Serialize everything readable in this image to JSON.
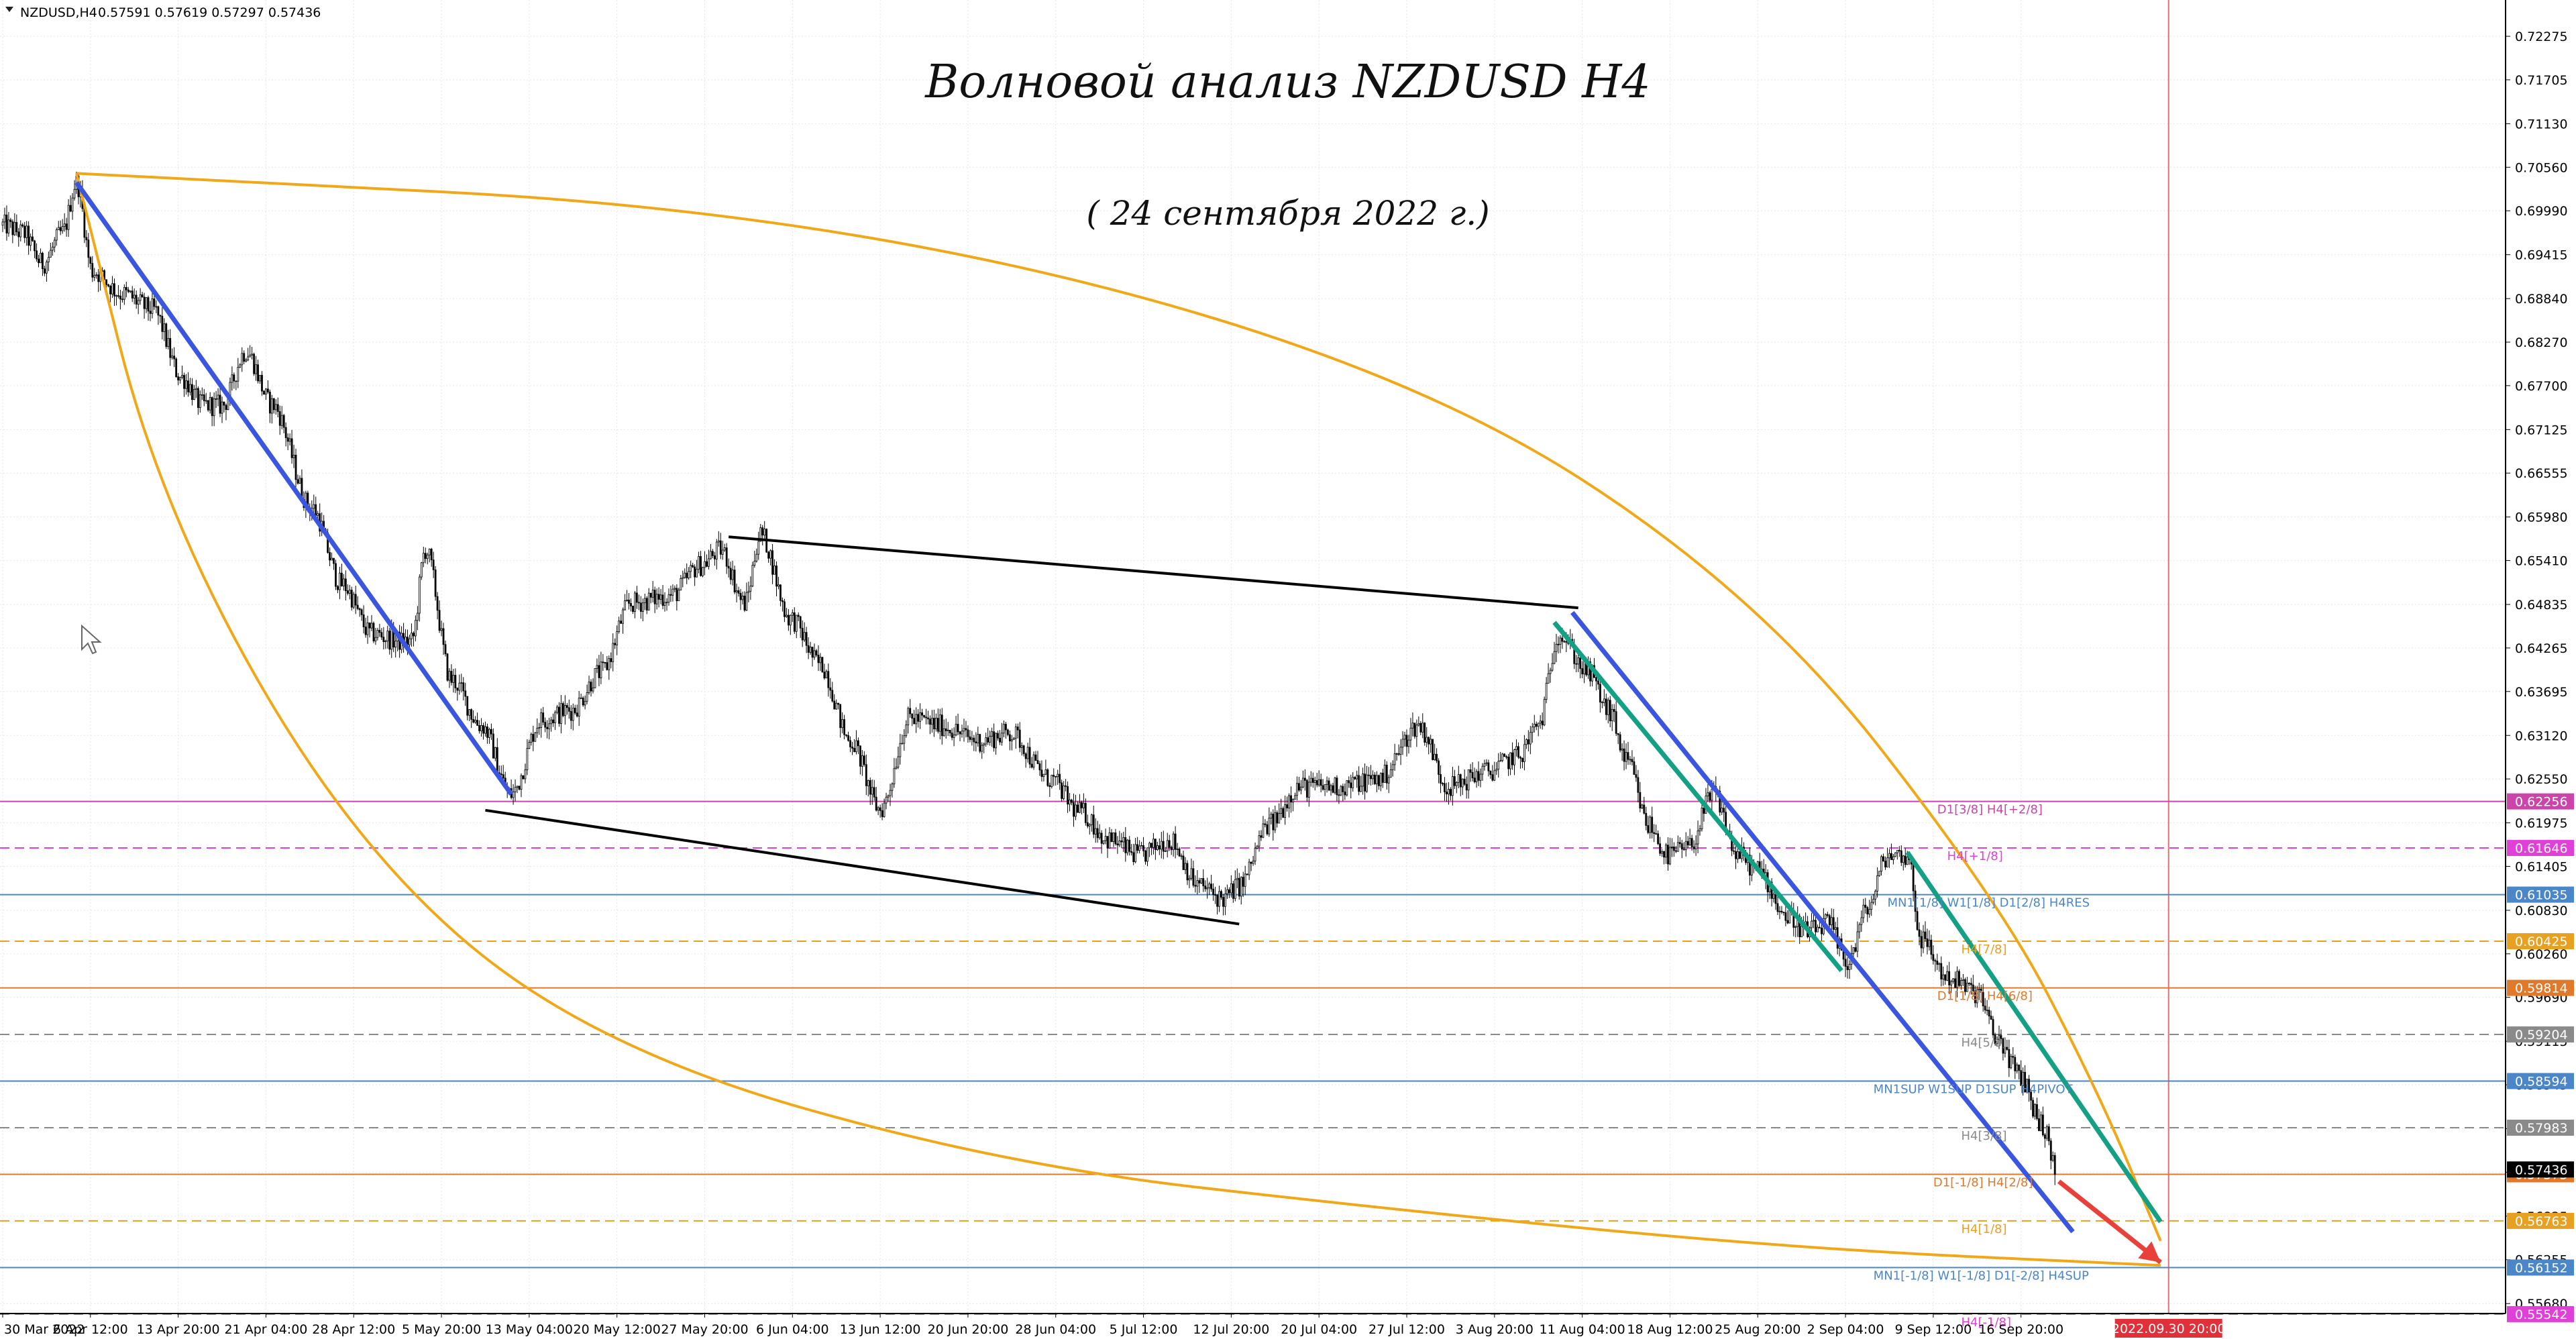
{
  "header": {
    "symbol_label": "NZDUSD,H4",
    "ohlc": "0.57591 0.57619 0.57297 0.57436"
  },
  "title": "Волновой анализ NZDUSD H4",
  "subtitle": "( 24 сентября 2022 г.)",
  "colors": {
    "background": "#ffffff",
    "grid": "#e6e6e6",
    "candle": "#000000",
    "impulse_blue": "#3a55e0",
    "channel_teal": "#13a085",
    "arc_orange": "#f0a818",
    "triangle_black": "#000000",
    "arrow_red": "#e8413a",
    "time_marker": "#e07070"
  },
  "chart_data": {
    "type": "candlestick",
    "ylim": [
      0.5555,
      0.7275
    ],
    "y_ticks": [
      "0.72275",
      "0.71705",
      "0.71130",
      "0.70560",
      "0.69990",
      "0.69415",
      "0.68840",
      "0.68270",
      "0.67700",
      "0.67125",
      "0.66555",
      "0.65980",
      "0.65410",
      "0.64835",
      "0.64265",
      "0.63695",
      "0.63120",
      "0.62550",
      "0.61975",
      "0.61405",
      "0.60830",
      "0.60260",
      "0.59690",
      "0.59115",
      "0.58545",
      "0.57970",
      "0.57400",
      "0.56825",
      "0.56255",
      "0.55680"
    ],
    "x_ticks": [
      "30 Mar 2022",
      "6 Apr 12:00",
      "13 Apr 20:00",
      "21 Apr 04:00",
      "28 Apr 12:00",
      "5 May 20:00",
      "13 May 04:00",
      "20 May 12:00",
      "27 May 20:00",
      "6 Jun 04:00",
      "13 Jun 12:00",
      "20 Jun 20:00",
      "28 Jun 04:00",
      "5 Jul 12:00",
      "12 Jul 20:00",
      "20 Jul 04:00",
      "27 Jul 12:00",
      "3 Aug 20:00",
      "11 Aug 04:00",
      "18 Aug 12:00",
      "25 Aug 20:00",
      "2 Sep 04:00",
      "9 Sep 12:00",
      "16 Sep 20:00"
    ],
    "x_tick_idx": [
      0,
      44,
      88,
      132,
      176,
      220,
      264,
      308,
      352,
      396,
      440,
      484,
      528,
      572,
      616,
      660,
      704,
      748,
      792,
      836,
      880,
      924,
      968,
      1012
    ],
    "n_bars": 1030,
    "future_marker": {
      "label": "2022.09.30 20:00",
      "idx": 1086
    },
    "path_knots": [
      [
        0,
        0.698
      ],
      [
        10,
        0.697
      ],
      [
        20,
        0.693
      ],
      [
        30,
        0.697
      ],
      [
        37,
        0.7036
      ],
      [
        45,
        0.692
      ],
      [
        60,
        0.689
      ],
      [
        75,
        0.687
      ],
      [
        90,
        0.678
      ],
      [
        100,
        0.6745
      ],
      [
        110,
        0.6744
      ],
      [
        122,
        0.6815
      ],
      [
        135,
        0.6745
      ],
      [
        155,
        0.661
      ],
      [
        170,
        0.651
      ],
      [
        185,
        0.6445
      ],
      [
        200,
        0.6435
      ],
      [
        205,
        0.6435
      ],
      [
        212,
        0.6555
      ],
      [
        225,
        0.6385
      ],
      [
        240,
        0.6325
      ],
      [
        255,
        0.6235
      ],
      [
        270,
        0.6332
      ],
      [
        285,
        0.6345
      ],
      [
        300,
        0.6395
      ],
      [
        315,
        0.6485
      ],
      [
        335,
        0.6495
      ],
      [
        350,
        0.6535
      ],
      [
        360,
        0.6555
      ],
      [
        372,
        0.6485
      ],
      [
        380,
        0.6575
      ],
      [
        395,
        0.6465
      ],
      [
        410,
        0.6405
      ],
      [
        425,
        0.6305
      ],
      [
        440,
        0.6215
      ],
      [
        455,
        0.6335
      ],
      [
        470,
        0.6325
      ],
      [
        490,
        0.6305
      ],
      [
        505,
        0.6315
      ],
      [
        525,
        0.6255
      ],
      [
        540,
        0.6212
      ],
      [
        555,
        0.6175
      ],
      [
        570,
        0.6155
      ],
      [
        585,
        0.6175
      ],
      [
        600,
        0.6115
      ],
      [
        612,
        0.6098
      ],
      [
        620,
        0.6115
      ],
      [
        635,
        0.6195
      ],
      [
        650,
        0.6245
      ],
      [
        670,
        0.6245
      ],
      [
        690,
        0.6255
      ],
      [
        710,
        0.6325
      ],
      [
        725,
        0.6245
      ],
      [
        745,
        0.6265
      ],
      [
        760,
        0.6285
      ],
      [
        770,
        0.6325
      ],
      [
        780,
        0.6445
      ],
      [
        795,
        0.6395
      ],
      [
        805,
        0.6345
      ],
      [
        815,
        0.6275
      ],
      [
        825,
        0.6195
      ],
      [
        835,
        0.6155
      ],
      [
        845,
        0.6165
      ],
      [
        858,
        0.6235
      ],
      [
        870,
        0.6155
      ],
      [
        880,
        0.6135
      ],
      [
        895,
        0.6075
      ],
      [
        905,
        0.6055
      ],
      [
        915,
        0.6065
      ],
      [
        925,
        0.6015
      ],
      [
        935,
        0.6085
      ],
      [
        945,
        0.6155
      ],
      [
        955,
        0.6155
      ],
      [
        962,
        0.6045
      ],
      [
        975,
        0.5995
      ],
      [
        990,
        0.5975
      ],
      [
        1000,
        0.5915
      ],
      [
        1012,
        0.5865
      ],
      [
        1022,
        0.5805
      ],
      [
        1030,
        0.5744
      ]
    ]
  },
  "levels": [
    {
      "price": 0.62256,
      "color": "#cc44aa",
      "dash": "solid",
      "label": "D1[3/8] H4[+2/8]",
      "label_idx": 970,
      "badge": "0.62256"
    },
    {
      "price": 0.61646,
      "color": "#e040d8",
      "dash": "dashed",
      "label": "H4[+1/8]",
      "label_idx": 975,
      "badge": "0.61646"
    },
    {
      "price": 0.61035,
      "color": "#4a86c8",
      "dash": "solid",
      "label": "MN1[1/8] W1[1/8] D1[2/8] H4RES",
      "label_idx": 945,
      "badge": "0.61035"
    },
    {
      "price": 0.60425,
      "color": "#e8a020",
      "dash": "dashed",
      "label": "H4[7/8]",
      "label_idx": 982,
      "badge": "0.60425"
    },
    {
      "price": 0.59814,
      "color": "#e07a2a",
      "dash": "solid",
      "label": "D1[1/8] H4[6/8]",
      "label_idx": 970,
      "badge": "0.59814"
    },
    {
      "price": 0.59204,
      "color": "#8a8a8a",
      "dash": "dashed",
      "label": "H4[5/8]",
      "label_idx": 982,
      "badge": "0.59204"
    },
    {
      "price": 0.58594,
      "color": "#4a86c8",
      "dash": "solid",
      "label": "MN1SUP W1SUP D1SUP H4PIVOT",
      "label_idx": 938,
      "badge": "0.58594"
    },
    {
      "price": 0.57983,
      "color": "#8a8a8a",
      "dash": "dashed",
      "label": "H4[3/8]",
      "label_idx": 982,
      "badge": "0.57983"
    },
    {
      "price": 0.57373,
      "color": "#e07a2a",
      "dash": "solid",
      "label": "D1[-1/8] H4[2/8]",
      "label_idx": 968,
      "badge": "0.57373"
    },
    {
      "price": 0.56763,
      "color": "#e8a020",
      "dash": "dashed",
      "label": "H4[1/8]",
      "label_idx": 982,
      "badge": "0.56763"
    },
    {
      "price": 0.56152,
      "color": "#4a86c8",
      "dash": "solid",
      "label": "MN1[-1/8] W1[-1/8] D1[-2/8] H4SUP",
      "label_idx": 938,
      "badge": "0.56152"
    },
    {
      "price": 0.55542,
      "color": "#e040d8",
      "dash": "dashed",
      "label": "H4[-1/8]",
      "label_idx": 982,
      "badge": "0.55542"
    }
  ],
  "current_price_badge": "0.57436",
  "drawings": {
    "blue_lines": [
      [
        [
          37,
          0.7036
        ],
        [
          255,
          0.6235
        ]
      ],
      [
        [
          787,
          0.6473
        ],
        [
          1038,
          0.5662
        ]
      ]
    ],
    "teal_lines": [
      [
        [
          778,
          0.646
        ],
        [
          922,
          0.6004
        ]
      ],
      [
        [
          955,
          0.6159
        ],
        [
          1082,
          0.5675
        ]
      ]
    ],
    "triangle_lines": [
      [
        [
          364,
          0.6572
        ],
        [
          790,
          0.6479
        ]
      ],
      [
        [
          242,
          0.6214
        ],
        [
          620,
          0.6065
        ]
      ]
    ],
    "arcs": [
      [
        [
          37,
          0.7048
        ],
        [
          400,
          0.7
        ],
        [
          700,
          0.68
        ],
        [
          880,
          0.65
        ],
        [
          1000,
          0.61
        ],
        [
          1050,
          0.585
        ],
        [
          1082,
          0.565
        ]
      ],
      [
        [
          37,
          0.7048
        ],
        [
          80,
          0.66
        ],
        [
          180,
          0.615
        ],
        [
          300,
          0.59
        ],
        [
          500,
          0.575
        ],
        [
          700,
          0.569
        ],
        [
          900,
          0.564
        ],
        [
          1082,
          0.5618
        ]
      ]
    ],
    "red_arrow": [
      [
        1031,
        0.5728
      ],
      [
        1082,
        0.5622
      ]
    ]
  }
}
